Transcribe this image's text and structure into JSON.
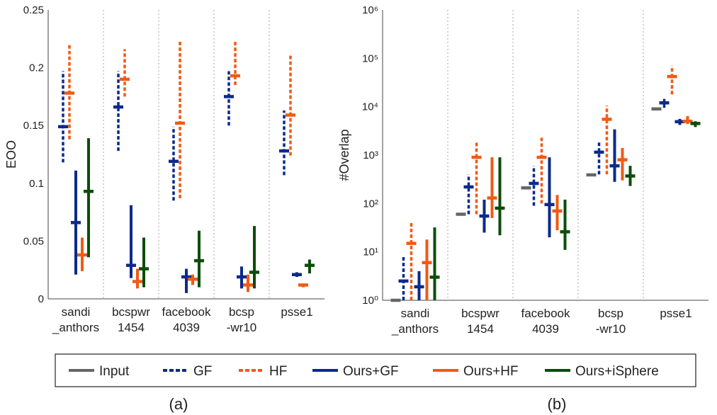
{
  "legend": {
    "items": [
      {
        "name": "Input",
        "color": "#666666",
        "style": "solid"
      },
      {
        "name": "GF",
        "color": "#0b2a8a",
        "style": "dashed"
      },
      {
        "name": "HF",
        "color": "#f05a14",
        "style": "dashed"
      },
      {
        "name": "Ours+GF",
        "color": "#0b2a8a",
        "style": "solid"
      },
      {
        "name": "Ours+HF",
        "color": "#f05a14",
        "style": "solid"
      },
      {
        "name": "Ours+iSphere",
        "color": "#0b4d0b",
        "style": "solid"
      }
    ]
  },
  "chart_data": [
    {
      "type": "range",
      "panel_label": "(a)",
      "ylabel": "EOO",
      "ylim": [
        0,
        0.25
      ],
      "yticks": [
        "0",
        "0.05",
        "0.1",
        "0.15",
        "0.2",
        "0.25"
      ],
      "categories": [
        [
          "sandi",
          "_anthors"
        ],
        [
          "bcspwr",
          "1454"
        ],
        [
          "facebook",
          "4039"
        ],
        [
          "bcsp",
          "-wr10"
        ],
        [
          "psse1"
        ]
      ],
      "series": [
        {
          "name": "GF",
          "low": [
            0.118,
            0.128,
            0.085,
            0.15,
            0.107
          ],
          "mid": [
            0.149,
            0.166,
            0.119,
            0.175,
            0.128
          ],
          "high": [
            0.197,
            0.197,
            0.149,
            0.197,
            0.163
          ]
        },
        {
          "name": "HF",
          "low": [
            0.138,
            0.175,
            0.087,
            0.185,
            0.124
          ],
          "mid": [
            0.178,
            0.19,
            0.152,
            0.193,
            0.159
          ],
          "high": [
            0.221,
            0.216,
            0.223,
            0.223,
            0.212
          ]
        },
        {
          "name": "Ours+GF",
          "low": [
            0.021,
            0.018,
            0.005,
            0.009,
            0.019
          ],
          "mid": [
            0.066,
            0.029,
            0.019,
            0.019,
            0.021
          ],
          "high": [
            0.111,
            0.081,
            0.026,
            0.028,
            0.023
          ]
        },
        {
          "name": "Ours+HF",
          "low": [
            0.024,
            0.009,
            0.012,
            0.006,
            0.01
          ],
          "mid": [
            0.038,
            0.015,
            0.017,
            0.012,
            0.012
          ],
          "high": [
            0.053,
            0.026,
            0.021,
            0.021,
            0.013
          ]
        },
        {
          "name": "Ours+iSphere",
          "low": [
            0.036,
            0.01,
            0.01,
            0.009,
            0.022
          ],
          "mid": [
            0.093,
            0.026,
            0.033,
            0.023,
            0.029
          ],
          "high": [
            0.139,
            0.053,
            0.059,
            0.063,
            0.034
          ]
        }
      ]
    },
    {
      "type": "range",
      "panel_label": "(b)",
      "ylabel": "#Overlap",
      "yscale": "log",
      "ylim": [
        1,
        1000000
      ],
      "yticks": [
        "10⁰",
        "10¹",
        "10²",
        "10³",
        "10⁴",
        "10⁵",
        "10⁶"
      ],
      "categories": [
        [
          "sandi",
          "_anthors"
        ],
        [
          "bcspwr",
          "1454"
        ],
        [
          "facebook",
          "4039"
        ],
        [
          "bcsp",
          "-wr10"
        ],
        [
          "psse1"
        ]
      ],
      "series": [
        {
          "name": "Input",
          "low": [
            1,
            60,
            210,
            390,
            9000
          ],
          "mid": [
            1,
            60,
            210,
            390,
            9000
          ],
          "high": [
            1,
            60,
            210,
            390,
            9000
          ]
        },
        {
          "name": "GF",
          "low": [
            1,
            60,
            90,
            400,
            9500
          ],
          "mid": [
            2.5,
            220,
            260,
            1150,
            12000
          ],
          "high": [
            8,
            400,
            600,
            2000,
            14500
          ]
        },
        {
          "name": "HF",
          "low": [
            1,
            60,
            100,
            400,
            18000
          ],
          "mid": [
            15,
            900,
            900,
            5500,
            42000
          ],
          "high": [
            42,
            2000,
            2400,
            10500,
            70000
          ]
        },
        {
          "name": "Ours+GF",
          "low": [
            1,
            25,
            20,
            280,
            4200
          ],
          "mid": [
            1.9,
            55,
            95,
            600,
            4900
          ],
          "high": [
            4,
            120,
            900,
            3400,
            5600
          ]
        },
        {
          "name": "Ours+HF",
          "low": [
            1,
            50,
            28,
            300,
            4400
          ],
          "mid": [
            6,
            130,
            70,
            800,
            5000
          ],
          "high": [
            18,
            900,
            150,
            1400,
            6400
          ]
        },
        {
          "name": "Ours+iSphere",
          "low": [
            1,
            22,
            11,
            230,
            3800
          ],
          "mid": [
            3,
            80,
            26,
            370,
            4500
          ],
          "high": [
            32,
            900,
            120,
            600,
            5000
          ]
        }
      ]
    }
  ]
}
